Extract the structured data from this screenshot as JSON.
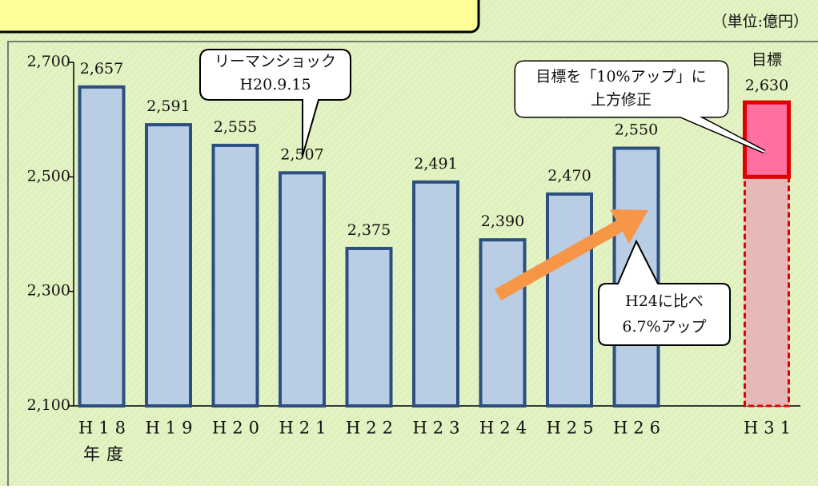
{
  "chart_data": {
    "type": "bar",
    "unit_label": "（単位:億円）",
    "x_label": "年度",
    "categories": [
      "H18",
      "H19",
      "H20",
      "H21",
      "H22",
      "H23",
      "H24",
      "H25",
      "H26"
    ],
    "values": [
      2657,
      2591,
      2555,
      2507,
      2375,
      2491,
      2390,
      2470,
      2550
    ],
    "value_labels": [
      "2,657",
      "2,591",
      "2,555",
      "2,507",
      "2,375",
      "2,491",
      "2,390",
      "2,470",
      "2,550"
    ],
    "color": "#b9cde4",
    "edge_color": "#2b4f7e",
    "ylim": [
      2100,
      2700
    ],
    "yticks": [
      {
        "value": 2100,
        "label": "2,100"
      },
      {
        "value": 2300,
        "label": "2,300"
      },
      {
        "value": 2500,
        "label": "2,500"
      },
      {
        "value": 2700,
        "label": "2,700"
      }
    ],
    "target": {
      "category": "H31",
      "label": "目標",
      "value": 2630,
      "value_label": "2,630",
      "base": 2500,
      "color": "#ff6fa0",
      "base_color": "#e8b8b8",
      "edge_color": "#e00000"
    },
    "annotations": {
      "lehman": [
        "リーマンショック",
        "H20.9.15"
      ],
      "target_note": [
        "目標を「10%アップ」に",
        "上方修正"
      ],
      "growth": [
        "H24に比べ",
        "6.7%アップ"
      ]
    }
  }
}
